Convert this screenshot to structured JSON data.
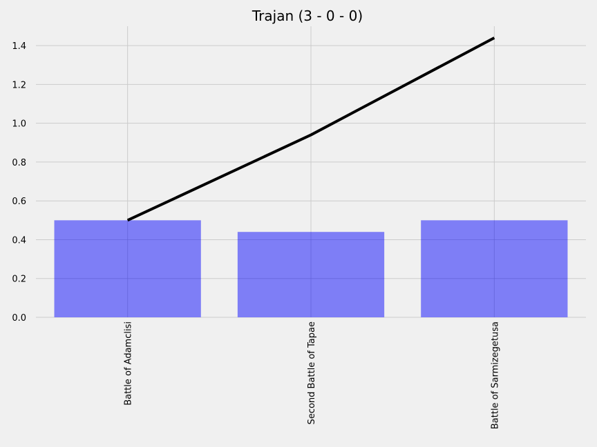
{
  "chart_data": {
    "type": "bar",
    "title": "Trajan (3 - 0 - 0)",
    "xlabel": "",
    "ylabel": "",
    "categories": [
      "Battle of Adamclisi",
      "Second Battle of Tapae",
      "Battle of Sarmizegetusa"
    ],
    "series": [
      {
        "type": "bar",
        "values": [
          0.5,
          0.44,
          0.5
        ],
        "color": "#7777f6"
      },
      {
        "type": "line",
        "values": [
          0.5,
          0.94,
          1.44
        ],
        "color": "#000000"
      }
    ],
    "ylim": [
      0,
      1.5
    ],
    "yticks": [
      "0.0",
      "0.2",
      "0.4",
      "0.6",
      "0.8",
      "1.0",
      "1.2",
      "1.4"
    ],
    "grid": true,
    "legend": "none"
  }
}
